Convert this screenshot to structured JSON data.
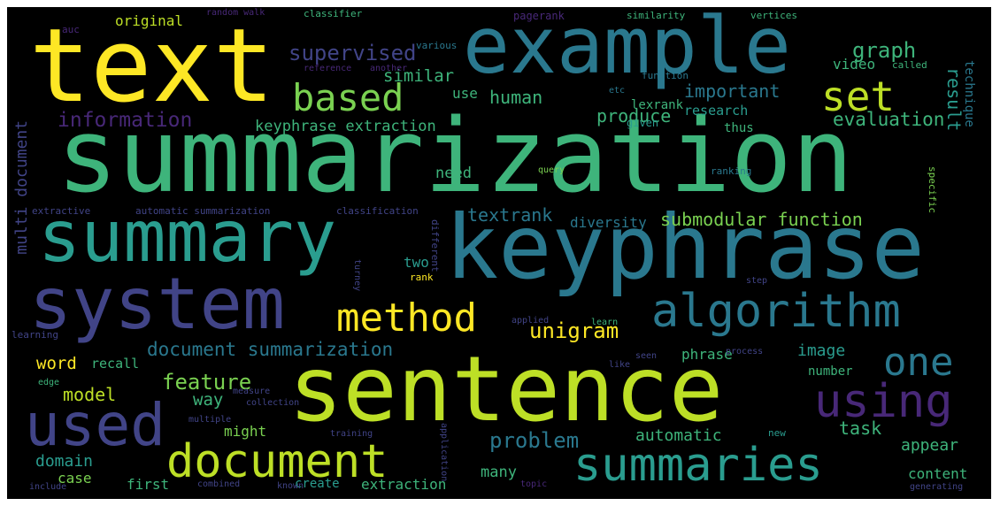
{
  "palette": {
    "background": "#000000",
    "dark_purple": "#440154",
    "indigo": "#414487",
    "blue": "#2a788e",
    "teal": "#22a884",
    "green": "#7ad151",
    "yellow_green": "#bddf26",
    "yellow": "#fde725"
  },
  "words": [
    {
      "text": "summarization",
      "color": "#3eb47b"
    },
    {
      "text": "keyphrase",
      "color": "#2a788e"
    },
    {
      "text": "sentence",
      "color": "#bddf26"
    },
    {
      "text": "text",
      "color": "#fde725"
    },
    {
      "text": "example",
      "color": "#2a788e"
    },
    {
      "text": "summary",
      "color": "#2a9d8f"
    },
    {
      "text": "system",
      "color": "#414487"
    },
    {
      "text": "algorithm",
      "color": "#2a788e"
    },
    {
      "text": "document",
      "color": "#bddf26"
    },
    {
      "text": "summaries",
      "color": "#2a9d8f"
    },
    {
      "text": "used",
      "color": "#414487"
    },
    {
      "text": "method",
      "color": "#fde725"
    },
    {
      "text": "based",
      "color": "#7ad151"
    },
    {
      "text": "set",
      "color": "#bddf26"
    },
    {
      "text": "one",
      "color": "#2a788e"
    },
    {
      "text": "using",
      "color": "#482878"
    },
    {
      "text": "document summarization",
      "color": "#2a788e"
    },
    {
      "text": "supervised",
      "color": "#414487"
    },
    {
      "text": "information",
      "color": "#482878"
    },
    {
      "text": "keyphrase extraction",
      "color": "#3eb47b"
    },
    {
      "text": "graph",
      "color": "#3eb47b"
    },
    {
      "text": "human",
      "color": "#3eb47b"
    },
    {
      "text": "important",
      "color": "#2a788e"
    },
    {
      "text": "produce",
      "color": "#3eb47b"
    },
    {
      "text": "evaluation",
      "color": "#3eb47b"
    },
    {
      "text": "result",
      "color": "#2a9d8f"
    },
    {
      "text": "similar",
      "color": "#3eb47b"
    },
    {
      "text": "use",
      "color": "#3eb47b"
    },
    {
      "text": "original",
      "color": "#bddf26"
    },
    {
      "text": "video",
      "color": "#3eb47b"
    },
    {
      "text": "multi document",
      "color": "#414487"
    },
    {
      "text": "need",
      "color": "#3eb47b"
    },
    {
      "text": "textrank",
      "color": "#2a788e"
    },
    {
      "text": "diversity",
      "color": "#2a788e"
    },
    {
      "text": "submodular function",
      "color": "#7ad151"
    },
    {
      "text": "unigram",
      "color": "#fde725"
    },
    {
      "text": "image",
      "color": "#2a9d8f"
    },
    {
      "text": "feature",
      "color": "#7ad151"
    },
    {
      "text": "word",
      "color": "#fde725"
    },
    {
      "text": "recall",
      "color": "#3eb47b"
    },
    {
      "text": "model",
      "color": "#bddf26"
    },
    {
      "text": "way",
      "color": "#3eb47b"
    },
    {
      "text": "might",
      "color": "#7ad151"
    },
    {
      "text": "phrase",
      "color": "#3eb47b"
    },
    {
      "text": "number",
      "color": "#3eb47b"
    },
    {
      "text": "two",
      "color": "#2a9d8f"
    },
    {
      "text": "task",
      "color": "#3eb47b"
    },
    {
      "text": "problem",
      "color": "#2a788e"
    },
    {
      "text": "automatic",
      "color": "#3eb47b"
    },
    {
      "text": "appear",
      "color": "#3eb47b"
    },
    {
      "text": "domain",
      "color": "#2a9d8f"
    },
    {
      "text": "case",
      "color": "#7ad151"
    },
    {
      "text": "many",
      "color": "#3eb47b"
    },
    {
      "text": "content",
      "color": "#3eb47b"
    },
    {
      "text": "first",
      "color": "#3eb47b"
    },
    {
      "text": "extraction",
      "color": "#3eb47b"
    },
    {
      "text": "create",
      "color": "#2a9d8f"
    },
    {
      "text": "lexrank",
      "color": "#3eb47b"
    },
    {
      "text": "research",
      "color": "#2a9d8f"
    },
    {
      "text": "thus",
      "color": "#3eb47b"
    },
    {
      "text": "technique",
      "color": "#2a788e"
    },
    {
      "text": "pagerank",
      "color": "#482878"
    },
    {
      "text": "similarity",
      "color": "#3eb47b"
    },
    {
      "text": "vertices",
      "color": "#3eb47b"
    },
    {
      "text": "classifier",
      "color": "#3eb47b"
    },
    {
      "text": "random walk",
      "color": "#482878"
    },
    {
      "text": "auc",
      "color": "#482878"
    },
    {
      "text": "various",
      "color": "#2a788e"
    },
    {
      "text": "reference",
      "color": "#482878"
    },
    {
      "text": "another",
      "color": "#482878"
    },
    {
      "text": "function",
      "color": "#2a788e"
    },
    {
      "text": "called",
      "color": "#3eb47b"
    },
    {
      "text": "etc",
      "color": "#2a788e"
    },
    {
      "text": "given",
      "color": "#2a9d8f"
    },
    {
      "text": "query",
      "color": "#7ad151"
    },
    {
      "text": "ranking",
      "color": "#2a788e"
    },
    {
      "text": "specific",
      "color": "#7ad151"
    },
    {
      "text": "extractive",
      "color": "#414487"
    },
    {
      "text": "automatic summarization",
      "color": "#414487"
    },
    {
      "text": "classification",
      "color": "#414487"
    },
    {
      "text": "different",
      "color": "#414487"
    },
    {
      "text": "turney",
      "color": "#414487"
    },
    {
      "text": "rank",
      "color": "#fde725"
    },
    {
      "text": "step",
      "color": "#414487"
    },
    {
      "text": "learning",
      "color": "#414487"
    },
    {
      "text": "applied",
      "color": "#414487"
    },
    {
      "text": "learn",
      "color": "#3eb47b"
    },
    {
      "text": "training",
      "color": "#414487"
    },
    {
      "text": "application",
      "color": "#414487"
    },
    {
      "text": "multiple",
      "color": "#414487"
    },
    {
      "text": "collection",
      "color": "#414487"
    },
    {
      "text": "measure",
      "color": "#414487"
    },
    {
      "text": "combined",
      "color": "#414487"
    },
    {
      "text": "include",
      "color": "#414487"
    },
    {
      "text": "topic",
      "color": "#482878"
    },
    {
      "text": "generating",
      "color": "#414487"
    },
    {
      "text": "edge",
      "color": "#3eb47b"
    },
    {
      "text": "new",
      "color": "#2a9d8f"
    },
    {
      "text": "like",
      "color": "#414487"
    },
    {
      "text": "process",
      "color": "#414487"
    },
    {
      "text": "seen",
      "color": "#414487"
    },
    {
      "text": "known",
      "color": "#414487"
    }
  ]
}
